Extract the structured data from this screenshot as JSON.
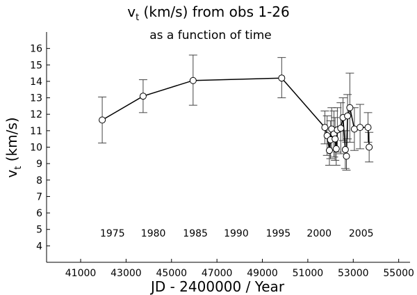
{
  "chart_data": {
    "type": "scatter",
    "title": "v",
    "title_sub": "t",
    "title_rest": " (km/s) from obs 1-26",
    "subtitle": "as a function of time",
    "xlabel": "JD - 2400000 /  Year",
    "ylabel": "v",
    "ylabel_sub": "t",
    "ylabel_rest": " (km/s)",
    "xlim": [
      39500,
      55500
    ],
    "ylim": [
      3,
      17
    ],
    "x_ticks": [
      41000,
      43000,
      45000,
      47000,
      49000,
      51000,
      53000,
      55000
    ],
    "y_ticks": [
      4,
      5,
      6,
      7,
      8,
      9,
      10,
      11,
      12,
      13,
      14,
      15,
      16
    ],
    "year_labels": [
      {
        "label": "1975",
        "x": 42400
      },
      {
        "label": "1980",
        "x": 44200
      },
      {
        "label": "1985",
        "x": 46050
      },
      {
        "label": "1990",
        "x": 47850
      },
      {
        "label": "1995",
        "x": 49700
      },
      {
        "label": "2000",
        "x": 51500
      },
      {
        "label": "2005",
        "x": 53350
      }
    ],
    "grid": false,
    "connected": true,
    "points": [
      {
        "x": 41950,
        "y": 11.65,
        "lo": 10.25,
        "hi": 13.05
      },
      {
        "x": 43750,
        "y": 13.1,
        "lo": 12.1,
        "hi": 14.1
      },
      {
        "x": 45950,
        "y": 14.05,
        "lo": 12.55,
        "hi": 15.6
      },
      {
        "x": 49850,
        "y": 14.2,
        "lo": 13.0,
        "hi": 15.45
      },
      {
        "x": 51750,
        "y": 11.2,
        "lo": 10.2,
        "hi": 12.2
      },
      {
        "x": 51850,
        "y": 10.7,
        "lo": 9.5,
        "hi": 11.9
      },
      {
        "x": 51950,
        "y": 9.8,
        "lo": 8.9,
        "hi": 10.7
      },
      {
        "x": 52000,
        "y": 10.45,
        "lo": 9.3,
        "hi": 11.6
      },
      {
        "x": 52050,
        "y": 11.1,
        "lo": 9.8,
        "hi": 12.4
      },
      {
        "x": 52150,
        "y": 10.8,
        "lo": 9.4,
        "hi": 12.2
      },
      {
        "x": 52200,
        "y": 10.5,
        "lo": 9.2,
        "hi": 11.8
      },
      {
        "x": 52250,
        "y": 9.9,
        "lo": 8.9,
        "hi": 10.9
      },
      {
        "x": 52300,
        "y": 11.05,
        "lo": 9.7,
        "hi": 12.4
      },
      {
        "x": 52450,
        "y": 11.15,
        "lo": 9.6,
        "hi": 12.7
      },
      {
        "x": 52550,
        "y": 11.8,
        "lo": 10.4,
        "hi": 13.0
      },
      {
        "x": 52650,
        "y": 9.85,
        "lo": 8.7,
        "hi": 11.0
      },
      {
        "x": 52700,
        "y": 9.45,
        "lo": 8.6,
        "hi": 10.3
      },
      {
        "x": 52750,
        "y": 11.9,
        "lo": 10.5,
        "hi": 13.2
      },
      {
        "x": 52850,
        "y": 12.4,
        "lo": 10.3,
        "hi": 14.5
      },
      {
        "x": 53050,
        "y": 11.1,
        "lo": 9.8,
        "hi": 12.4
      },
      {
        "x": 53300,
        "y": 11.2,
        "lo": 9.9,
        "hi": 12.6
      },
      {
        "x": 53650,
        "y": 11.2,
        "lo": 10.3,
        "hi": 12.1
      },
      {
        "x": 53700,
        "y": 10.0,
        "lo": 9.1,
        "hi": 10.9
      }
    ]
  }
}
